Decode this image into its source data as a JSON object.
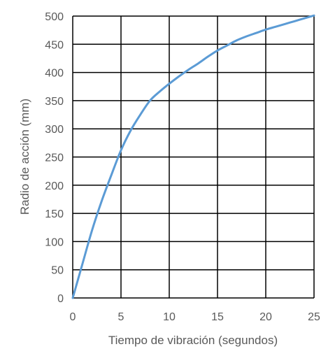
{
  "chart_data": {
    "type": "line",
    "xlabel": "Tiempo de vibración (segundos)",
    "ylabel": "Radio de acción (mm)",
    "xlim": [
      0,
      25
    ],
    "ylim": [
      0,
      500
    ],
    "xticks": [
      0,
      5,
      10,
      15,
      20,
      25
    ],
    "yticks": [
      0,
      50,
      100,
      150,
      200,
      250,
      300,
      350,
      400,
      450,
      500
    ],
    "grid": true,
    "legend": "none",
    "colors": {
      "line": "#5b9bd5",
      "grid": "#000000",
      "text": "#595959"
    },
    "series": [
      {
        "x": [
          0,
          1,
          2,
          3,
          4,
          5,
          6,
          7,
          8,
          9,
          10,
          11,
          12,
          13,
          14,
          15,
          16,
          17,
          18,
          19,
          20,
          21,
          22,
          23,
          24,
          25
        ],
        "values": [
          0,
          60,
          120,
          172,
          218,
          262,
          297,
          325,
          350,
          366,
          380,
          393,
          405,
          416,
          428,
          439,
          448,
          457,
          464,
          470,
          476,
          481,
          486,
          491,
          496,
          501
        ]
      }
    ]
  }
}
